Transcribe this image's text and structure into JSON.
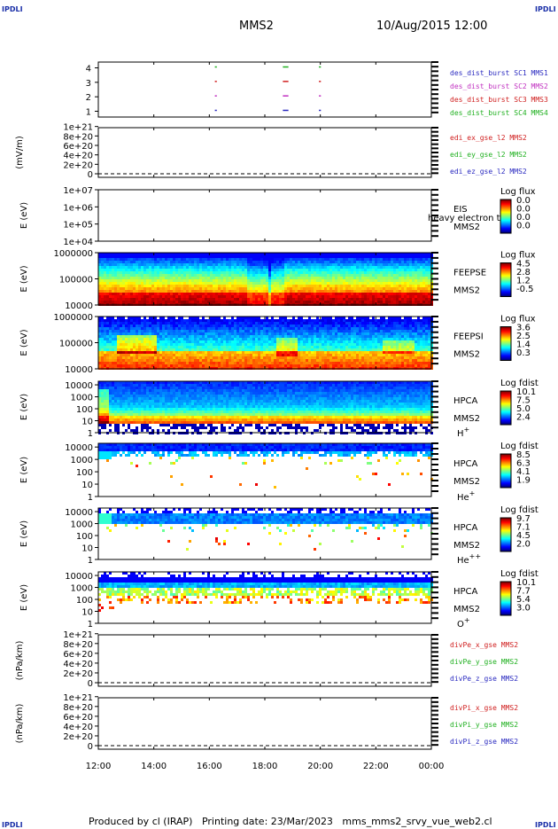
{
  "header": {
    "corner_left": "IPDLI",
    "corner_right": "IPDLI",
    "mission": "MMS2",
    "datetime": "10/Aug/2015 12:00"
  },
  "footer": {
    "text": "Produced by cl (IRAP)   Printing date: 23/Mar/2023   mms_mms2_srvy_vue_web2.cl",
    "corner_left": "IPDLI",
    "corner_right": "IPDLI"
  },
  "chart_data": {
    "type": "heatmap",
    "time_axis": {
      "ticks": [
        "12:00",
        "14:00",
        "16:00",
        "18:00",
        "20:00",
        "22:00",
        "00:00"
      ],
      "start_hour": 12,
      "end_hour": 24
    },
    "panels": [
      {
        "id": "burst",
        "kind": "bars",
        "ytick_labels": [
          "1",
          "2",
          "3",
          "4"
        ],
        "ylim": [
          0.6,
          4.4
        ],
        "legend": [
          {
            "text": "des_dist_burst SC1 MMS1",
            "color": "#2a2ac0"
          },
          {
            "text": "des_dist_burst SC2 MMS2",
            "color": "#c030c0"
          },
          {
            "text": "des_dist_burst SC3 MMS3",
            "color": "#d02020"
          },
          {
            "text": "des_dist_burst SC4 MMS4",
            "color": "#20b020"
          }
        ],
        "segments": [
          {
            "sc": 4,
            "start": 16.2,
            "end": 16.27
          },
          {
            "sc": 4,
            "start": 18.65,
            "end": 18.85
          },
          {
            "sc": 4,
            "start": 19.95,
            "end": 20.02
          },
          {
            "sc": 3,
            "start": 16.2,
            "end": 16.27
          },
          {
            "sc": 3,
            "start": 18.65,
            "end": 18.85
          },
          {
            "sc": 3,
            "start": 19.95,
            "end": 20.02
          },
          {
            "sc": 2,
            "start": 16.2,
            "end": 16.27
          },
          {
            "sc": 2,
            "start": 18.65,
            "end": 18.85
          },
          {
            "sc": 2,
            "start": 19.95,
            "end": 20.02
          },
          {
            "sc": 1,
            "start": 16.2,
            "end": 16.27
          },
          {
            "sc": 1,
            "start": 18.65,
            "end": 18.85
          },
          {
            "sc": 1,
            "start": 19.95,
            "end": 20.02
          }
        ]
      },
      {
        "id": "edi",
        "kind": "empty_line",
        "ylabel": "(mV/m)",
        "ytick_labels": [
          "0",
          "2e+20",
          "4e+20",
          "6e+20",
          "8e+20",
          "1e+21"
        ],
        "ylim": [
          0,
          1.05e+21
        ],
        "legend": [
          {
            "text": "edi_ex_gse_l2 MMS2",
            "color": "#d02020"
          },
          {
            "text": "edi_ey_gse_l2 MMS2",
            "color": "#20b020"
          },
          {
            "text": "edi_ez_gse_l2 MMS2",
            "color": "#2a2ac0"
          }
        ]
      },
      {
        "id": "eis",
        "kind": "spectrogram",
        "ylabel": "E (eV)",
        "ytick_labels": [
          "1e+04",
          "1e+05",
          "1e+06",
          "1e+07"
        ],
        "log_range": [
          4,
          7
        ],
        "instrument": [
          "EIS",
          "MMS2"
        ],
        "overlap_text": "heavy electron to",
        "cbar_title": "Log flux",
        "cbar_ticks": [
          "0.0",
          "0.0",
          "0.0",
          "0.0"
        ],
        "profile": "empty"
      },
      {
        "id": "feeps_e",
        "kind": "spectrogram",
        "ylabel": "E (eV)",
        "ytick_labels": [
          "10000",
          "100000",
          "1000000"
        ],
        "log_range": [
          4,
          6
        ],
        "instrument": [
          "FEEPSE",
          "MMS2"
        ],
        "cbar_title": "Log flux",
        "cbar_ticks": [
          "4.5",
          "2.8",
          "1.2",
          "-0.5"
        ],
        "profile": "feepse"
      },
      {
        "id": "feeps_i",
        "kind": "spectrogram",
        "ylabel": "E (eV)",
        "ytick_labels": [
          "10000",
          "100000",
          "1000000"
        ],
        "log_range": [
          4,
          6
        ],
        "instrument": [
          "FEEPSI",
          "MMS2"
        ],
        "cbar_title": "Log flux",
        "cbar_ticks": [
          "3.6",
          "2.5",
          "1.4",
          "0.3"
        ],
        "profile": "feepsi"
      },
      {
        "id": "hpca_h",
        "kind": "spectrogram",
        "ylabel": "E (eV)",
        "ytick_labels": [
          "1",
          "10",
          "100",
          "1000",
          "10000"
        ],
        "log_range": [
          0,
          4.3
        ],
        "instrument": [
          "HPCA",
          "MMS2"
        ],
        "species": "H",
        "species_sup": "+",
        "cbar_title": "Log fdist",
        "cbar_ticks": [
          "10.1",
          "7.5",
          "5.0",
          "2.4"
        ],
        "profile": "hplus"
      },
      {
        "id": "hpca_he",
        "kind": "spectrogram",
        "ylabel": "E (eV)",
        "ytick_labels": [
          "1",
          "10",
          "100",
          "1000",
          "10000"
        ],
        "log_range": [
          0,
          4.3
        ],
        "instrument": [
          "HPCA",
          "MMS2"
        ],
        "species": "He",
        "species_sup": "+",
        "cbar_title": "Log fdist",
        "cbar_ticks": [
          "8.5",
          "6.3",
          "4.1",
          "1.9"
        ],
        "profile": "heplus"
      },
      {
        "id": "hpca_hepp",
        "kind": "spectrogram",
        "ylabel": "E (eV)",
        "ytick_labels": [
          "1",
          "10",
          "100",
          "1000",
          "10000"
        ],
        "log_range": [
          0,
          4.3
        ],
        "instrument": [
          "HPCA",
          "MMS2"
        ],
        "species": "He",
        "species_sup": "++",
        "cbar_title": "Log fdist",
        "cbar_ticks": [
          "9.7",
          "7.1",
          "4.5",
          "2.0"
        ],
        "profile": "heplusplus"
      },
      {
        "id": "hpca_o",
        "kind": "spectrogram",
        "ylabel": "E (eV)",
        "ytick_labels": [
          "1",
          "10",
          "100",
          "1000",
          "10000"
        ],
        "log_range": [
          0,
          4.3
        ],
        "instrument": [
          "HPCA",
          "MMS2"
        ],
        "species": "O",
        "species_sup": "+",
        "cbar_title": "Log fdist",
        "cbar_ticks": [
          "10.1",
          "7.7",
          "5.4",
          "3.0"
        ],
        "profile": "oplus"
      },
      {
        "id": "divpe",
        "kind": "empty_line",
        "ylabel": "(nPa/km)",
        "ytick_labels": [
          "0",
          "2e+20",
          "4e+20",
          "6e+20",
          "8e+20",
          "1e+21"
        ],
        "ylim": [
          0,
          1.05e+21
        ],
        "legend": [
          {
            "text": "divPe_x_gse MMS2",
            "color": "#d02020"
          },
          {
            "text": "divPe_y_gse MMS2",
            "color": "#20b020"
          },
          {
            "text": "divPe_z_gse MMS2",
            "color": "#2a2ac0"
          }
        ]
      },
      {
        "id": "divpi",
        "kind": "empty_line",
        "ylabel": "(nPa/km)",
        "ytick_labels": [
          "0",
          "2e+20",
          "4e+20",
          "6e+20",
          "8e+20",
          "1e+21"
        ],
        "ylim": [
          0,
          1.05e+21
        ],
        "legend": [
          {
            "text": "divPi_x_gse MMS2",
            "color": "#d02020"
          },
          {
            "text": "divPi_y_gse MMS2",
            "color": "#20b020"
          },
          {
            "text": "divPi_z_gse MMS2",
            "color": "#2a2ac0"
          }
        ]
      }
    ]
  }
}
